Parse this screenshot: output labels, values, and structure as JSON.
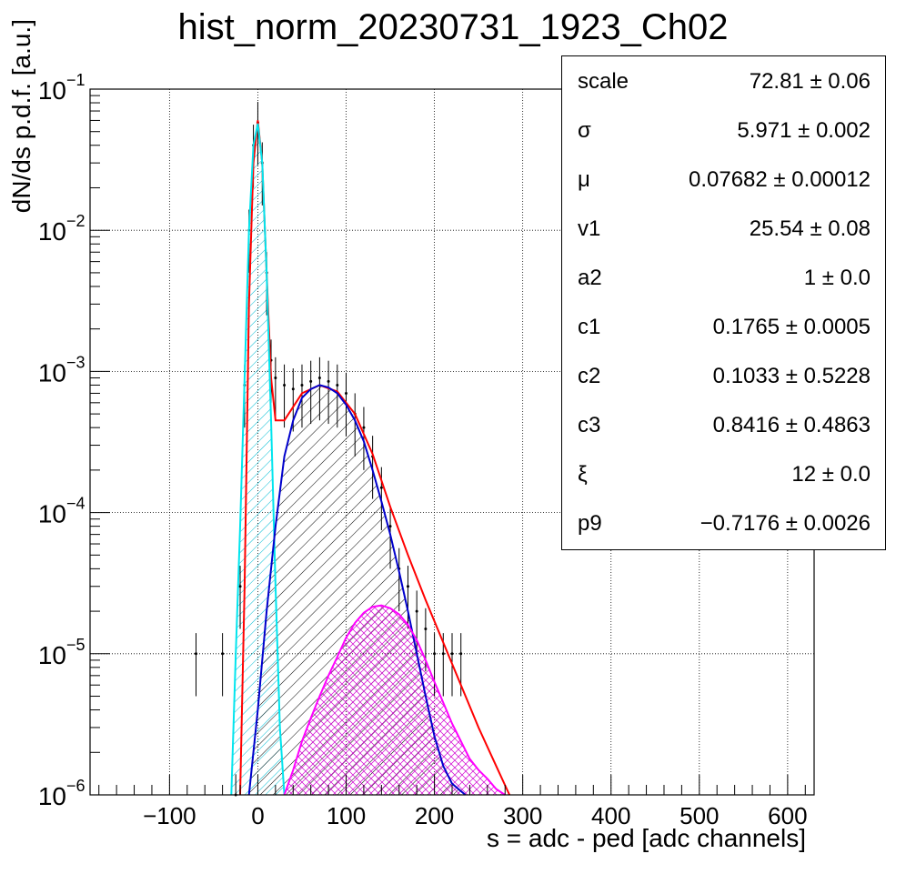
{
  "chart_data": {
    "type": "line",
    "title": "hist_norm_20230731_1923_Ch02",
    "xlabel": "s = adc - ped [adc channels]",
    "ylabel": "dN/ds p.d.f. [a.u.]",
    "xlim": [
      -190,
      630
    ],
    "ylim_log10": [
      -6,
      -1
    ],
    "yscale": "log",
    "grid": true,
    "x_ticks": [
      -100,
      0,
      100,
      200,
      300,
      400,
      500,
      600
    ],
    "x_tick_labels": [
      "−100",
      "0",
      "100",
      "200",
      "300",
      "400",
      "500",
      "600"
    ],
    "y_ticks_log10": [
      -6,
      -5,
      -4,
      -3,
      -2,
      -1
    ],
    "y_tick_labels": [
      "10",
      "10",
      "10",
      "10",
      "10",
      "10"
    ],
    "y_tick_exponents": [
      "−6",
      "−5",
      "−4",
      "−3",
      "−2",
      "−1"
    ],
    "series": [
      {
        "color": "#000000",
        "style": "histogram-hatched",
        "x": [
          -70,
          -40,
          -25,
          -20,
          -15,
          -10,
          -5,
          0,
          5,
          10,
          15,
          20,
          30,
          40,
          50,
          60,
          70,
          80,
          90,
          100,
          110,
          120,
          130,
          140,
          150,
          160,
          170,
          180,
          190,
          200,
          210,
          220,
          230
        ],
        "y": [
          1e-05,
          1e-05,
          1e-06,
          3e-05,
          0.0008,
          0.01,
          0.04,
          0.058,
          0.03,
          0.005,
          0.0012,
          0.0009,
          0.0008,
          0.00075,
          0.0008,
          0.00085,
          0.0009,
          0.00085,
          0.0008,
          0.0007,
          0.0005,
          0.0004,
          0.00025,
          0.00015,
          8e-05,
          4e-05,
          3e-05,
          2e-05,
          1.5e-05,
          1e-05,
          1e-05,
          1e-05,
          1e-05
        ]
      },
      {
        "color": "#ff0000",
        "style": "line",
        "x": [
          -20,
          -15,
          -10,
          -5,
          0,
          5,
          10,
          15,
          20,
          30,
          50,
          70,
          90,
          110,
          130,
          150,
          170,
          190,
          210,
          230,
          250,
          270,
          285
        ],
        "y": [
          1e-06,
          3e-05,
          0.003,
          0.03,
          0.06,
          0.03,
          0.005,
          0.0009,
          0.00045,
          0.00045,
          0.0007,
          0.0008,
          0.00072,
          0.0005,
          0.00026,
          0.00011,
          5e-05,
          2.4e-05,
          1.2e-05,
          6e-06,
          3e-06,
          1.6e-06,
          1e-06
        ]
      },
      {
        "color": "#00e5ee",
        "style": "line-hatched",
        "x": [
          -30,
          -25,
          -20,
          -15,
          -10,
          -5,
          0,
          5,
          10,
          15,
          20,
          25,
          30
        ],
        "y": [
          1e-06,
          1e-05,
          8e-05,
          0.0009,
          0.01,
          0.04,
          0.057,
          0.03,
          0.005,
          0.00045,
          3e-05,
          3e-06,
          1e-06
        ]
      },
      {
        "color": "#0000cc",
        "style": "line-hatched",
        "x": [
          -10,
          0,
          10,
          20,
          30,
          40,
          50,
          60,
          70,
          80,
          90,
          100,
          110,
          120,
          130,
          140,
          150,
          160,
          170,
          180,
          190,
          200,
          210,
          220,
          235
        ],
        "y": [
          1e-06,
          4e-06,
          2e-05,
          8e-05,
          0.00025,
          0.00045,
          0.00065,
          0.00075,
          0.0008,
          0.00077,
          0.0007,
          0.00058,
          0.00045,
          0.00032,
          0.0002,
          0.00012,
          7e-05,
          3.8e-05,
          2e-05,
          1e-05,
          5e-06,
          2.6e-06,
          1.6e-06,
          1.2e-06,
          1e-06
        ]
      },
      {
        "color": "#ff00ff",
        "style": "line-hatched",
        "x": [
          30,
          40,
          50,
          60,
          70,
          80,
          90,
          100,
          110,
          120,
          130,
          140,
          150,
          160,
          170,
          180,
          190,
          200,
          210,
          220,
          230,
          240,
          250,
          260,
          270,
          280
        ],
        "y": [
          1e-06,
          1.5e-06,
          2.4e-06,
          3.5e-06,
          5e-06,
          7e-06,
          9.5e-06,
          1.3e-05,
          1.65e-05,
          1.95e-05,
          2.15e-05,
          2.2e-05,
          2.1e-05,
          1.9e-05,
          1.6e-05,
          1.25e-05,
          9e-06,
          6.3e-06,
          4.5e-06,
          3.2e-06,
          2.4e-06,
          1.8e-06,
          1.5e-06,
          1.3e-06,
          1.1e-06,
          1e-06
        ]
      }
    ],
    "stats": [
      {
        "name": "scale",
        "value": "72.81",
        "error": "0.06"
      },
      {
        "name": "σ",
        "value": "5.971",
        "error": "0.002"
      },
      {
        "name": "μ",
        "value": "0.07682",
        "error": "0.00012"
      },
      {
        "name": "v1",
        "value": "25.54",
        "error": "0.08"
      },
      {
        "name": "a2",
        "value": "1",
        "error": "0.0"
      },
      {
        "name": "c1",
        "value": "0.1765",
        "error": "0.0005"
      },
      {
        "name": "c2",
        "value": "0.1033",
        "error": "0.5228"
      },
      {
        "name": "c3",
        "value": "0.8416",
        "error": "0.4863"
      },
      {
        "name": "ξ",
        "value": "12",
        "error": "0.0"
      },
      {
        "name": "p9",
        "value": "−0.7176",
        "error": "0.0026"
      }
    ],
    "pm_symbol": "±"
  }
}
